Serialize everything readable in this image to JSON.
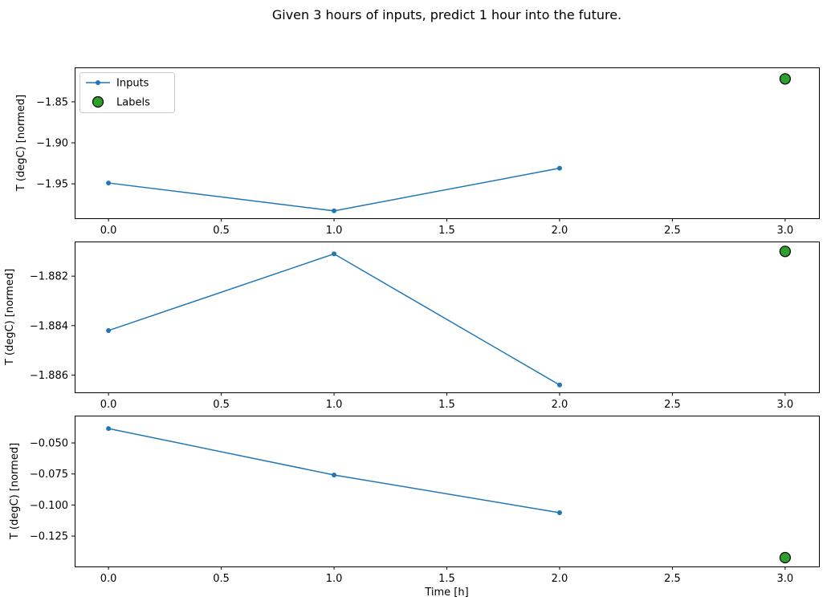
{
  "figure": {
    "title": "Given 3 hours of inputs, predict 1 hour into the future.",
    "background_color": "#ffffff"
  },
  "colors": {
    "inputs_line": "#1f77b4",
    "labels_marker": "#2ca02c",
    "marker_edge": "#000000",
    "axis": "#000000",
    "legend_border": "#cccccc"
  },
  "chart_data": [
    {
      "type": "line",
      "title": "",
      "xlabel": "",
      "ylabel": "T (degC) [normed]",
      "xlim": [
        -0.15,
        3.15
      ],
      "ylim": [
        -1.992,
        -1.808
      ],
      "x_tick_values": [
        0,
        0.5,
        1,
        1.5,
        2,
        2.5,
        3
      ],
      "x_tick_labels": [
        "0.0",
        "0.5",
        "1.0",
        "1.5",
        "2.0",
        "2.5",
        "3.0"
      ],
      "y_tick_values": [
        -1.85,
        -1.9,
        -1.95
      ],
      "y_tick_labels": [
        "−1.85",
        "−1.90",
        "−1.95"
      ],
      "grid": false,
      "legend": {
        "visible": true,
        "location": "upper left",
        "labels": [
          "Inputs",
          "Labels"
        ]
      },
      "series": [
        {
          "name": "Inputs",
          "style": "line+marker",
          "color": "#1f77b4",
          "x": [
            0,
            1,
            2
          ],
          "y": [
            -1.949,
            -1.983,
            -1.931
          ]
        },
        {
          "name": "Labels",
          "style": "scatter",
          "color": "#2ca02c",
          "edge_color": "#000000",
          "x": [
            3
          ],
          "y": [
            -1.822
          ]
        }
      ]
    },
    {
      "type": "line",
      "title": "",
      "xlabel": "",
      "ylabel": "T (degC) [normed]",
      "xlim": [
        -0.15,
        3.15
      ],
      "ylim": [
        -1.8867,
        -1.8806
      ],
      "x_tick_values": [
        0,
        0.5,
        1,
        1.5,
        2,
        2.5,
        3
      ],
      "x_tick_labels": [
        "0.0",
        "0.5",
        "1.0",
        "1.5",
        "2.0",
        "2.5",
        "3.0"
      ],
      "y_tick_values": [
        -1.882,
        -1.884,
        -1.886
      ],
      "y_tick_labels": [
        "−1.882",
        "−1.884",
        "−1.886"
      ],
      "grid": false,
      "legend": {
        "visible": false
      },
      "series": [
        {
          "name": "Inputs",
          "style": "line+marker",
          "color": "#1f77b4",
          "x": [
            0,
            1,
            2
          ],
          "y": [
            -1.8842,
            -1.8811,
            -1.8864
          ]
        },
        {
          "name": "Labels",
          "style": "scatter",
          "color": "#2ca02c",
          "edge_color": "#000000",
          "x": [
            3
          ],
          "y": [
            -1.881
          ]
        }
      ]
    },
    {
      "type": "line",
      "title": "",
      "xlabel": "Time [h]",
      "ylabel": "T (degC) [normed]",
      "xlim": [
        -0.15,
        3.15
      ],
      "ylim": [
        -0.1495,
        -0.028
      ],
      "x_tick_values": [
        0,
        0.5,
        1,
        1.5,
        2,
        2.5,
        3
      ],
      "x_tick_labels": [
        "0.0",
        "0.5",
        "1.0",
        "1.5",
        "2.0",
        "2.5",
        "3.0"
      ],
      "y_tick_values": [
        -0.05,
        -0.075,
        -0.1,
        -0.125
      ],
      "y_tick_labels": [
        "−0.050",
        "−0.075",
        "−0.100",
        "−0.125"
      ],
      "grid": false,
      "legend": {
        "visible": false
      },
      "series": [
        {
          "name": "Inputs",
          "style": "line+marker",
          "color": "#1f77b4",
          "x": [
            0,
            1,
            2
          ],
          "y": [
            -0.0384,
            -0.0758,
            -0.1062
          ]
        },
        {
          "name": "Labels",
          "style": "scatter",
          "color": "#2ca02c",
          "edge_color": "#000000",
          "x": [
            3
          ],
          "y": [
            -0.1424
          ]
        }
      ]
    }
  ]
}
